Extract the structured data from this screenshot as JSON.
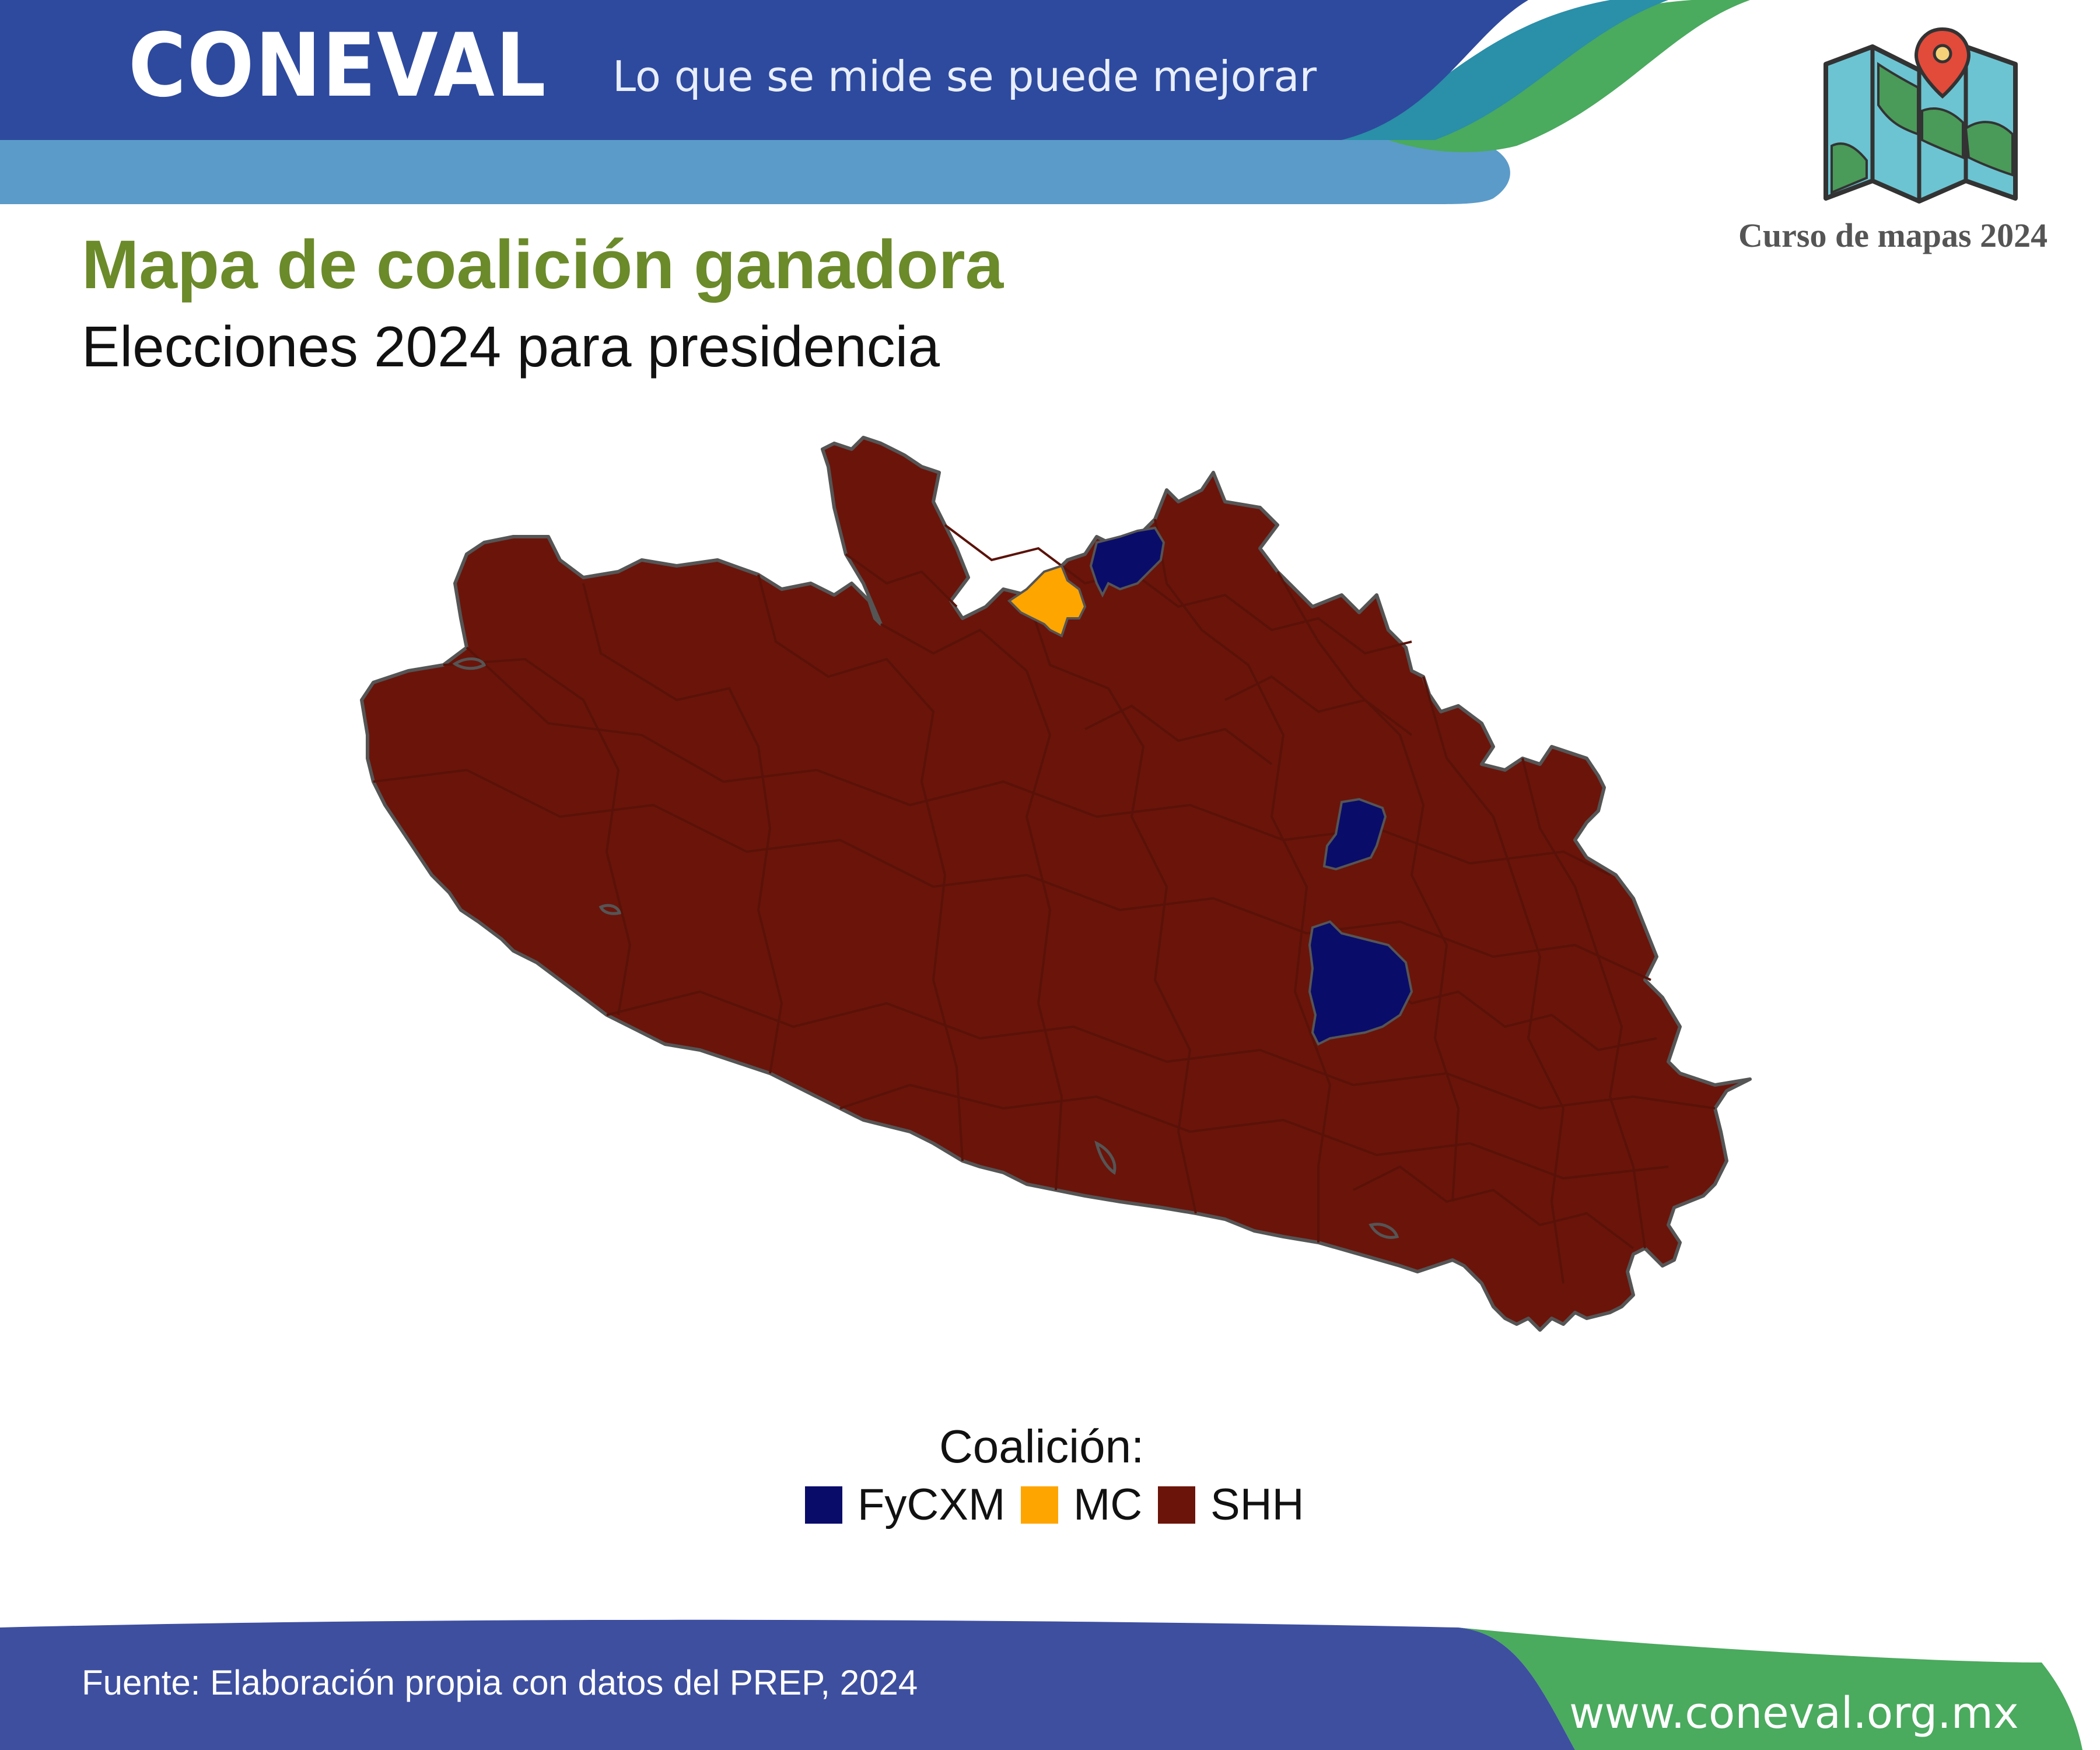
{
  "header": {
    "logo_text": "CONEVAL",
    "slogan": "Lo que se mide se puede mejorar",
    "course_label": "Curso de mapas 2024",
    "colors": {
      "primary": "#2e4a9e",
      "light": "#5b9bc9",
      "teal": "#2a8fa8",
      "green": "#4aaa5e"
    }
  },
  "title": "Mapa de coalición ganadora",
  "subtitle": "Elecciones 2024 para presidencia",
  "map": {
    "region_fill_colors": {
      "SHH": "#6b140a",
      "FyCXM": "#0a0c6a",
      "MC": "#ffa500"
    },
    "border_color": "#555555",
    "highlighted_municipalities": [
      {
        "coalition": "MC",
        "location": "north"
      },
      {
        "coalition": "FyCXM",
        "location": "north"
      },
      {
        "coalition": "FyCXM",
        "location": "center"
      },
      {
        "coalition": "FyCXM",
        "location": "center-south"
      }
    ]
  },
  "legend": {
    "title": "Coalición:",
    "items": [
      {
        "label": "FyCXM",
        "color": "#0a0c6a"
      },
      {
        "label": "MC",
        "color": "#ffa500"
      },
      {
        "label": "SHH",
        "color": "#6b140a"
      }
    ]
  },
  "footer": {
    "source": "Fuente: Elaboración propia con datos del PREP, 2024",
    "url": "www.coneval.org.mx"
  },
  "icons": {
    "course_icon": "folded-map-pin-icon"
  }
}
